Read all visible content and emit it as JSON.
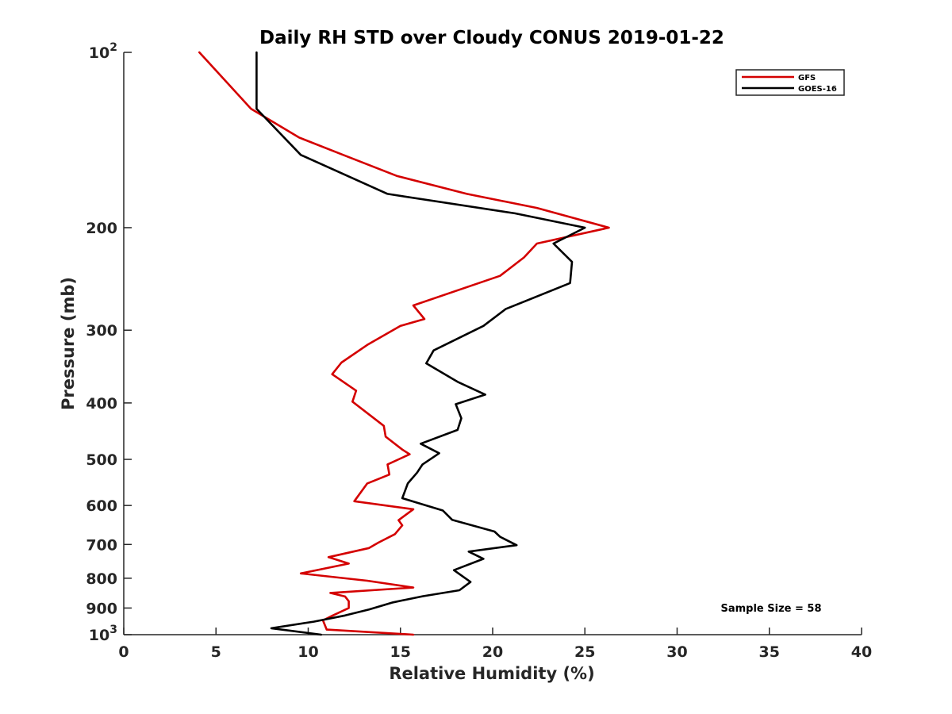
{
  "chart_data": {
    "type": "line",
    "title": "Daily RH STD over Cloudy CONUS 2019-01-22",
    "xlabel": "Relative Humidity (%)",
    "ylabel": "Pressure (mb)",
    "xlim": [
      0,
      40
    ],
    "ylim": [
      100,
      1000
    ],
    "y_scale": "log",
    "y_reversed": true,
    "grid": false,
    "legend_position": "top-right",
    "x_ticks": [
      "0",
      "5",
      "10",
      "15",
      "20",
      "25",
      "30",
      "35",
      "40"
    ],
    "x_tick_values": [
      0,
      5,
      10,
      15,
      20,
      25,
      30,
      35,
      40
    ],
    "y_ticks": [
      {
        "value": 100,
        "base": "10",
        "exp": "2"
      },
      {
        "value": 200,
        "label": "200"
      },
      {
        "value": 300,
        "label": "300"
      },
      {
        "value": 400,
        "label": "400"
      },
      {
        "value": 500,
        "label": "500"
      },
      {
        "value": 600,
        "label": "600"
      },
      {
        "value": 700,
        "label": "700"
      },
      {
        "value": 800,
        "label": "800"
      },
      {
        "value": 900,
        "label": "900"
      },
      {
        "value": 1000,
        "base": "10",
        "exp": "3"
      }
    ],
    "series": [
      {
        "name": "GFS",
        "color": "#d40000",
        "points": [
          [
            4.1,
            100
          ],
          [
            6.9,
            125
          ],
          [
            9.5,
            140
          ],
          [
            11.9,
            150
          ],
          [
            14.8,
            163
          ],
          [
            18.6,
            175
          ],
          [
            22.4,
            185
          ],
          [
            26.3,
            200
          ],
          [
            22.4,
            213
          ],
          [
            21.7,
            225
          ],
          [
            20.4,
            242
          ],
          [
            15.7,
            272
          ],
          [
            16.3,
            287
          ],
          [
            15.0,
            295
          ],
          [
            13.2,
            318
          ],
          [
            11.8,
            341
          ],
          [
            11.3,
            357
          ],
          [
            12.6,
            381
          ],
          [
            12.4,
            398
          ],
          [
            14.1,
            438
          ],
          [
            14.2,
            457
          ],
          [
            15.1,
            481
          ],
          [
            15.5,
            490
          ],
          [
            14.3,
            510
          ],
          [
            14.4,
            531
          ],
          [
            13.2,
            550
          ],
          [
            12.5,
            590
          ],
          [
            15.7,
            609
          ],
          [
            14.9,
            636
          ],
          [
            15.1,
            649
          ],
          [
            14.7,
            672
          ],
          [
            13.8,
            695
          ],
          [
            13.3,
            710
          ],
          [
            11.1,
            736
          ],
          [
            12.2,
            755
          ],
          [
            9.6,
            785
          ],
          [
            13.2,
            808
          ],
          [
            15.7,
            830
          ],
          [
            11.2,
            848
          ],
          [
            12.0,
            860
          ],
          [
            12.2,
            876
          ],
          [
            12.2,
            900
          ],
          [
            11.3,
            928
          ],
          [
            10.8,
            945
          ],
          [
            11.0,
            980
          ],
          [
            15.7,
            1000
          ]
        ]
      },
      {
        "name": "GOES-16",
        "color": "#000000",
        "points": [
          [
            7.2,
            100
          ],
          [
            7.2,
            125
          ],
          [
            9.6,
            150
          ],
          [
            14.3,
            175
          ],
          [
            21.2,
            189
          ],
          [
            25.0,
            200
          ],
          [
            23.3,
            213
          ],
          [
            24.3,
            229
          ],
          [
            24.2,
            249
          ],
          [
            20.7,
            276
          ],
          [
            19.5,
            295
          ],
          [
            16.8,
            325
          ],
          [
            16.4,
            342
          ],
          [
            18.1,
            368
          ],
          [
            19.6,
            387
          ],
          [
            18.0,
            402
          ],
          [
            18.3,
            425
          ],
          [
            18.1,
            445
          ],
          [
            16.1,
            470
          ],
          [
            17.1,
            488
          ],
          [
            16.2,
            510
          ],
          [
            15.9,
            527
          ],
          [
            15.4,
            550
          ],
          [
            15.1,
            583
          ],
          [
            17.3,
            612
          ],
          [
            17.8,
            635
          ],
          [
            20.1,
            665
          ],
          [
            20.4,
            679
          ],
          [
            21.3,
            702
          ],
          [
            18.7,
            720
          ],
          [
            19.5,
            741
          ],
          [
            17.9,
            775
          ],
          [
            18.8,
            812
          ],
          [
            18.2,
            839
          ],
          [
            16.2,
            859
          ],
          [
            14.6,
            880
          ],
          [
            13.3,
            905
          ],
          [
            12.0,
            927
          ],
          [
            10.3,
            950
          ],
          [
            8.0,
            975
          ],
          [
            10.7,
            1000
          ]
        ]
      }
    ],
    "annotation": "Sample Size = 58"
  }
}
